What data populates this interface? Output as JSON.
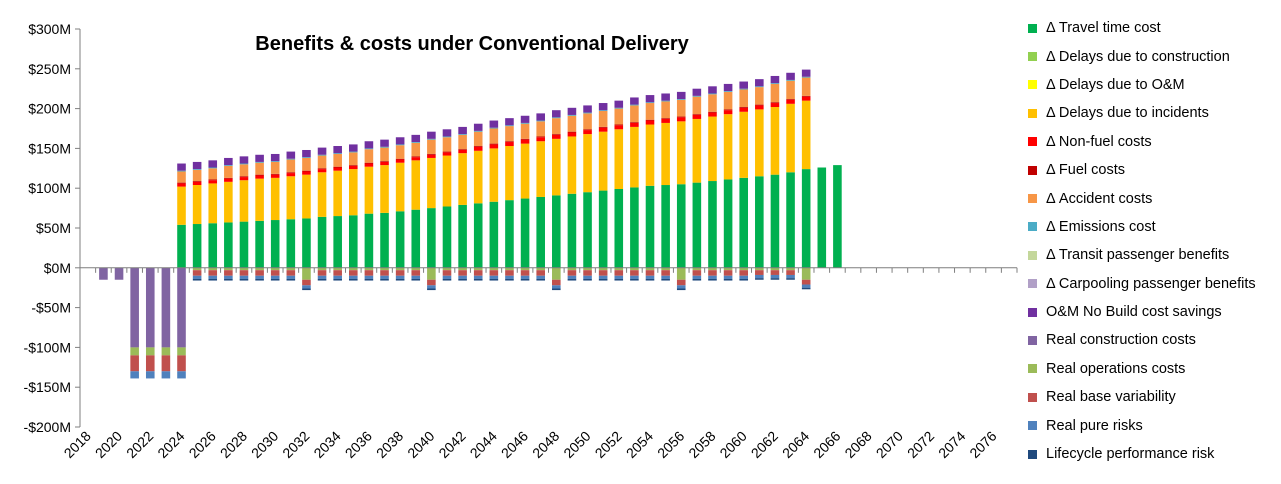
{
  "chart_data": {
    "type": "bar",
    "stacked": true,
    "title": "Benefits & costs under Conventional Delivery",
    "xlabel": "",
    "ylabel": "",
    "ylim": [
      -200,
      300
    ],
    "y_ticks": [
      -200,
      -150,
      -100,
      -50,
      0,
      50,
      100,
      150,
      200,
      250,
      300
    ],
    "y_tick_labels": [
      "-$200M",
      "-$150M",
      "-$100M",
      "-$50M",
      "$0M",
      "$50M",
      "$100M",
      "$150M",
      "$200M",
      "$250M",
      "$300M"
    ],
    "x_tick_labels": [
      "2018",
      "2020",
      "2022",
      "2024",
      "2026",
      "2028",
      "2030",
      "2032",
      "2034",
      "2036",
      "2038",
      "2040",
      "2042",
      "2044",
      "2046",
      "2048",
      "2050",
      "2052",
      "2054",
      "2056",
      "2058",
      "2060",
      "2062",
      "2064",
      "2066",
      "2068",
      "2070",
      "2072",
      "2074",
      "2076"
    ],
    "x_start": 2018,
    "x_end": 2077,
    "categories": [
      "2018",
      "2019",
      "2020",
      "2021",
      "2022",
      "2023",
      "2024",
      "2025",
      "2026",
      "2027",
      "2028",
      "2029",
      "2030",
      "2031",
      "2032",
      "2033",
      "2034",
      "2035",
      "2036",
      "2037",
      "2038",
      "2039",
      "2040",
      "2041",
      "2042",
      "2043",
      "2044",
      "2045",
      "2046",
      "2047",
      "2048",
      "2049",
      "2050",
      "2051",
      "2052",
      "2053",
      "2054",
      "2055",
      "2056",
      "2057",
      "2058",
      "2059",
      "2060",
      "2061",
      "2062",
      "2063",
      "2064",
      "2065",
      "2066",
      "2067",
      "2068",
      "2069",
      "2070",
      "2071",
      "2072",
      "2073",
      "2074",
      "2075",
      "2076",
      "2077"
    ],
    "grid": false,
    "legend_position": "right",
    "series": [
      {
        "name": "Δ Travel time cost",
        "color": "#00B050",
        "values": [
          0,
          0,
          0,
          0,
          0,
          0,
          54,
          55,
          56,
          57,
          58,
          59,
          60,
          61,
          62,
          64,
          65,
          66,
          68,
          69,
          71,
          73,
          75,
          77,
          79,
          81,
          83,
          85,
          87,
          89,
          91,
          93,
          95,
          97,
          99,
          101,
          103,
          104,
          105,
          107,
          109,
          111,
          113,
          115,
          117,
          120,
          124,
          126,
          129,
          0,
          0,
          0,
          0,
          0,
          0,
          0,
          0,
          0,
          0,
          0
        ]
      },
      {
        "name": "Δ Delays due to construction",
        "color": "#92D050",
        "values": [
          0,
          0,
          0,
          0,
          0,
          0,
          0,
          0,
          0,
          0,
          0,
          0,
          0,
          0,
          0,
          0,
          0,
          0,
          0,
          0,
          0,
          0,
          0,
          0,
          0,
          0,
          0,
          0,
          0,
          0,
          0,
          0,
          0,
          0,
          0,
          0,
          0,
          0,
          0,
          0,
          0,
          0,
          0,
          0,
          0,
          0,
          0,
          0,
          0,
          0,
          0,
          0,
          0,
          0,
          0,
          0,
          0,
          0,
          0,
          0
        ]
      },
      {
        "name": "Δ Delays due to O&M",
        "color": "#FFFF00",
        "values": [
          0,
          0,
          0,
          0,
          0,
          0,
          0,
          0,
          0,
          0,
          0,
          0,
          0,
          0,
          0,
          0,
          0,
          0,
          0,
          0,
          0,
          0,
          0,
          0,
          0,
          0,
          0,
          0,
          0,
          0,
          0,
          0,
          0,
          0,
          0,
          0,
          0,
          0,
          0,
          0,
          0,
          0,
          0,
          0,
          0,
          0,
          0,
          0,
          0,
          0,
          0,
          0,
          0,
          0,
          0,
          0,
          0,
          0,
          0,
          0
        ]
      },
      {
        "name": "Δ Delays due to incidents",
        "color": "#FFC000",
        "values": [
          0,
          0,
          0,
          0,
          0,
          0,
          48,
          49,
          50,
          51,
          52,
          53,
          53,
          54,
          55,
          56,
          57,
          58,
          59,
          60,
          61,
          62,
          63,
          64,
          65,
          66,
          67,
          68,
          69,
          70,
          71,
          72,
          73,
          74,
          75,
          76,
          77,
          78,
          79,
          80,
          81,
          82,
          83,
          84,
          85,
          86,
          86,
          0,
          0,
          0,
          0,
          0,
          0,
          0,
          0,
          0,
          0,
          0,
          0,
          0
        ]
      },
      {
        "name": "Δ Non-fuel  costs",
        "color": "#FF0000",
        "values": [
          0,
          0,
          0,
          0,
          0,
          0,
          4,
          4,
          4,
          4,
          4,
          4,
          4,
          4,
          4,
          4,
          4,
          4,
          4,
          4,
          4,
          4,
          4,
          4,
          4,
          5,
          5,
          5,
          5,
          5,
          5,
          5,
          5,
          5,
          5,
          5,
          5,
          5,
          5,
          5,
          5,
          5,
          5,
          5,
          5,
          5,
          5,
          0,
          0,
          0,
          0,
          0,
          0,
          0,
          0,
          0,
          0,
          0,
          0,
          0
        ]
      },
      {
        "name": "Δ Fuel costs",
        "color": "#C00000",
        "values": [
          0,
          0,
          0,
          0,
          0,
          0,
          1,
          1,
          1,
          1,
          1,
          1,
          1,
          1,
          1,
          1,
          1,
          1,
          1,
          1,
          1,
          1,
          1,
          1,
          1,
          1,
          1,
          1,
          1,
          1,
          1,
          1,
          1,
          1,
          1,
          1,
          1,
          1,
          1,
          1,
          1,
          1,
          1,
          1,
          1,
          1,
          1,
          0,
          0,
          0,
          0,
          0,
          0,
          0,
          0,
          0,
          0,
          0,
          0,
          0
        ]
      },
      {
        "name": "Δ Accident costs",
        "color": "#F79646",
        "values": [
          0,
          0,
          0,
          0,
          0,
          0,
          14,
          14,
          14,
          15,
          15,
          15,
          15,
          16,
          16,
          16,
          16,
          16,
          17,
          17,
          17,
          17,
          18,
          18,
          18,
          18,
          19,
          19,
          19,
          19,
          20,
          20,
          20,
          20,
          20,
          21,
          21,
          21,
          21,
          22,
          22,
          22,
          22,
          22,
          23,
          23,
          23,
          0,
          0,
          0,
          0,
          0,
          0,
          0,
          0,
          0,
          0,
          0,
          0,
          0
        ]
      },
      {
        "name": "Δ Emissions  cost",
        "color": "#4BACC6",
        "values": [
          0,
          0,
          0,
          0,
          0,
          0,
          1,
          1,
          1,
          1,
          1,
          1,
          1,
          1,
          1,
          1,
          1,
          1,
          1,
          1,
          1,
          1,
          1,
          1,
          1,
          1,
          1,
          1,
          1,
          1,
          1,
          1,
          1,
          1,
          1,
          1,
          1,
          1,
          1,
          1,
          1,
          1,
          1,
          1,
          1,
          1,
          1,
          0,
          0,
          0,
          0,
          0,
          0,
          0,
          0,
          0,
          0,
          0,
          0,
          0
        ]
      },
      {
        "name": "Δ Transit passenger benefits",
        "color": "#C4D79B",
        "values": [
          0,
          0,
          0,
          0,
          0,
          0,
          0,
          0,
          0,
          0,
          0,
          0,
          0,
          0,
          0,
          0,
          0,
          0,
          0,
          0,
          0,
          0,
          0,
          0,
          0,
          0,
          0,
          0,
          0,
          0,
          0,
          0,
          0,
          0,
          0,
          0,
          0,
          0,
          0,
          0,
          0,
          0,
          0,
          0,
          0,
          0,
          0,
          0,
          0,
          0,
          0,
          0,
          0,
          0,
          0,
          0,
          0,
          0,
          0,
          0
        ]
      },
      {
        "name": "Δ Carpooling passenger benefits",
        "color": "#B1A0C7",
        "values": [
          0,
          0,
          0,
          0,
          0,
          0,
          0,
          0,
          0,
          0,
          0,
          0,
          0,
          0,
          0,
          0,
          0,
          0,
          0,
          0,
          0,
          0,
          0,
          0,
          0,
          0,
          0,
          0,
          0,
          0,
          0,
          0,
          0,
          0,
          0,
          0,
          0,
          0,
          0,
          0,
          0,
          0,
          0,
          0,
          0,
          0,
          0,
          0,
          0,
          0,
          0,
          0,
          0,
          0,
          0,
          0,
          0,
          0,
          0,
          0
        ]
      },
      {
        "name": "O&M No Build cost savings",
        "color": "#7030A0",
        "values": [
          0,
          0,
          0,
          0,
          0,
          0,
          9,
          9,
          9,
          9,
          9,
          9,
          9,
          9,
          9,
          9,
          9,
          9,
          9,
          9,
          9,
          9,
          9,
          9,
          9,
          9,
          9,
          9,
          9,
          9,
          9,
          9,
          9,
          9,
          9,
          9,
          9,
          9,
          9,
          9,
          9,
          9,
          9,
          9,
          9,
          9,
          9,
          0,
          0,
          0,
          0,
          0,
          0,
          0,
          0,
          0,
          0,
          0,
          0,
          0
        ]
      },
      {
        "name": "Real construction costs",
        "color": "#8064A2",
        "values": [
          0,
          -15,
          -15,
          -100,
          -100,
          -100,
          -100,
          0,
          0,
          0,
          0,
          0,
          0,
          0,
          0,
          0,
          0,
          0,
          0,
          0,
          0,
          0,
          0,
          0,
          0,
          0,
          0,
          0,
          0,
          0,
          0,
          0,
          0,
          0,
          0,
          0,
          0,
          0,
          0,
          0,
          0,
          0,
          0,
          0,
          0,
          0,
          0,
          0,
          0,
          0,
          0,
          0,
          0,
          0,
          0,
          0,
          0,
          0,
          0,
          0
        ]
      },
      {
        "name": "Real operations costs",
        "color": "#9BBB59",
        "values": [
          0,
          0,
          0,
          -10,
          -10,
          -10,
          -10,
          -3,
          -3,
          -3,
          -3,
          -3,
          -3,
          -3,
          -15,
          -3,
          -3,
          -3,
          -3,
          -3,
          -3,
          -3,
          -15,
          -3,
          -3,
          -3,
          -3,
          -3,
          -3,
          -3,
          -15,
          -3,
          -3,
          -3,
          -3,
          -3,
          -3,
          -3,
          -15,
          -3,
          -3,
          -3,
          -3,
          -3,
          -3,
          -3,
          -15,
          0,
          0,
          0,
          0,
          0,
          0,
          0,
          0,
          0,
          0,
          0,
          0,
          0
        ]
      },
      {
        "name": "Real base variability",
        "color": "#C0504D",
        "values": [
          0,
          0,
          0,
          -20,
          -20,
          -20,
          -20,
          -7,
          -7,
          -7,
          -7,
          -7,
          -7,
          -7,
          -7,
          -7,
          -7,
          -7,
          -7,
          -7,
          -7,
          -7,
          -7,
          -7,
          -7,
          -7,
          -7,
          -7,
          -7,
          -7,
          -7,
          -7,
          -7,
          -7,
          -7,
          -7,
          -7,
          -7,
          -7,
          -7,
          -7,
          -7,
          -7,
          -6,
          -6,
          -6,
          -6,
          0,
          0,
          0,
          0,
          0,
          0,
          0,
          0,
          0,
          0,
          0,
          0,
          0
        ]
      },
      {
        "name": "Real pure risks",
        "color": "#4F81BD",
        "values": [
          0,
          0,
          0,
          -9,
          -9,
          -9,
          -9,
          -4,
          -4,
          -4,
          -4,
          -4,
          -4,
          -4,
          -4,
          -4,
          -4,
          -4,
          -4,
          -4,
          -4,
          -4,
          -4,
          -4,
          -4,
          -4,
          -4,
          -4,
          -4,
          -4,
          -4,
          -4,
          -4,
          -4,
          -4,
          -4,
          -4,
          -4,
          -4,
          -4,
          -4,
          -4,
          -4,
          -4,
          -4,
          -4,
          -4,
          0,
          0,
          0,
          0,
          0,
          0,
          0,
          0,
          0,
          0,
          0,
          0,
          0
        ]
      },
      {
        "name": "Lifecycle performance risk",
        "color": "#1F497D",
        "values": [
          0,
          0,
          0,
          0,
          0,
          0,
          0,
          -2,
          -2,
          -2,
          -2,
          -2,
          -2,
          -2,
          -2,
          -2,
          -2,
          -2,
          -2,
          -2,
          -2,
          -2,
          -2,
          -2,
          -2,
          -2,
          -2,
          -2,
          -2,
          -2,
          -2,
          -2,
          -2,
          -2,
          -2,
          -2,
          -2,
          -2,
          -2,
          -2,
          -2,
          -2,
          -2,
          -2,
          -2,
          -2,
          -2,
          0,
          0,
          0,
          0,
          0,
          0,
          0,
          0,
          0,
          0,
          0,
          0,
          0
        ]
      }
    ]
  }
}
